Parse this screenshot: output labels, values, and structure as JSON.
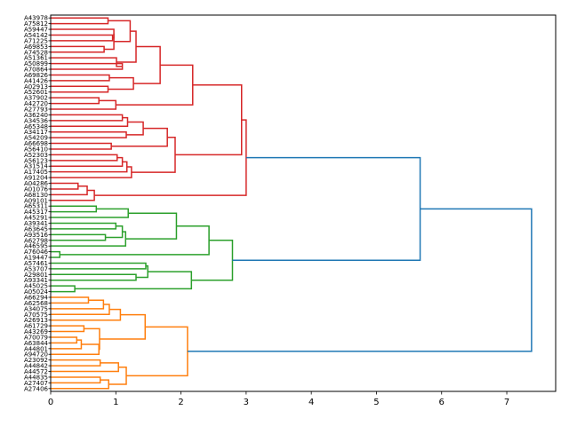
{
  "chart_data": {
    "type": "dendrogram",
    "orientation": "left",
    "title": "",
    "xlabel": "",
    "ylabel": "",
    "xlim": [
      0,
      7.75
    ],
    "xticks": [
      0,
      1,
      2,
      3,
      4,
      5,
      6,
      7
    ],
    "grid": false,
    "colors": {
      "red": "#d62728",
      "green": "#2ca02c",
      "orange": "#ff7f0e",
      "blue": "#1f77b4",
      "axis": "#000000"
    },
    "leaves": [
      "A43978",
      "A75812",
      "A59447",
      "A54142",
      "A71225",
      "A69853",
      "A74528",
      "A51361",
      "A50899",
      "A70864",
      "A69826",
      "A41426",
      "A02913",
      "A52601",
      "A37902",
      "A42720",
      "A27793",
      "A36240",
      "A34536",
      "A65348",
      "A34117",
      "A54209",
      "A66698",
      "A56410",
      "A52303",
      "A56123",
      "A31514",
      "A17405",
      "A91204",
      "A04286",
      "A01076",
      "A68130",
      "A09101",
      "A65311",
      "A45317",
      "A45291",
      "A39341",
      "A63645",
      "A93516",
      "A62798",
      "A46595",
      "A76046",
      "A19447",
      "A57461",
      "A53707",
      "A29801",
      "A93341",
      "A45025",
      "A05024",
      "A66294",
      "A62568",
      "A34075",
      "A70575",
      "A26913",
      "A61729",
      "A43269",
      "A70079",
      "A63844",
      "A44801",
      "A94720",
      "A23092",
      "A44842",
      "A44572",
      "A44835",
      "A27407",
      "A27406"
    ],
    "merges": [
      {
        "a": "A43978",
        "b": "A75812",
        "h": 0.88,
        "color": "red"
      },
      {
        "a": "A54142",
        "b": "A71225",
        "h": 0.95,
        "color": "red"
      },
      {
        "a": "A59447",
        "b": "m1",
        "h": 0.97,
        "color": "red"
      },
      {
        "a": "A69853",
        "b": "A74528",
        "h": 0.82,
        "color": "red"
      },
      {
        "a": "m2",
        "b": "m3",
        "h": 0.97,
        "color": "red"
      },
      {
        "a": "m0",
        "b": "m4",
        "h": 1.22,
        "color": "red"
      },
      {
        "a": "A50899",
        "b": "A70864",
        "h": 1.1,
        "color": "red"
      },
      {
        "a": "A51361",
        "b": "m6",
        "h": 1.01,
        "color": "red"
      },
      {
        "a": "m5",
        "b": "m7",
        "h": 1.31,
        "color": "red"
      },
      {
        "a": "A69826",
        "b": "A41426",
        "h": 0.9,
        "color": "red"
      },
      {
        "a": "A02913",
        "b": "A52601",
        "h": 0.88,
        "color": "red"
      },
      {
        "a": "m9",
        "b": "m10",
        "h": 1.27,
        "color": "red"
      },
      {
        "a": "m8",
        "b": "m11",
        "h": 1.68,
        "color": "red"
      },
      {
        "a": "A37902",
        "b": "A42720",
        "h": 0.74,
        "color": "red"
      },
      {
        "a": "m13",
        "b": "A27793",
        "h": 1.0,
        "color": "red"
      },
      {
        "a": "m12",
        "b": "m14",
        "h": 2.18,
        "color": "red"
      },
      {
        "a": "A36240",
        "b": "A34536",
        "h": 1.1,
        "color": "red"
      },
      {
        "a": "m16",
        "b": "A65348",
        "h": 1.18,
        "color": "red"
      },
      {
        "a": "A34117",
        "b": "A54209",
        "h": 1.16,
        "color": "red"
      },
      {
        "a": "m17",
        "b": "m18",
        "h": 1.42,
        "color": "red"
      },
      {
        "a": "A66698",
        "b": "A56410",
        "h": 0.93,
        "color": "red"
      },
      {
        "a": "m19",
        "b": "m20",
        "h": 1.79,
        "color": "red"
      },
      {
        "a": "A52303",
        "b": "A56123",
        "h": 1.02,
        "color": "red"
      },
      {
        "a": "m22",
        "b": "A31514",
        "h": 1.1,
        "color": "red"
      },
      {
        "a": "m23",
        "b": "A17405",
        "h": 1.17,
        "color": "red"
      },
      {
        "a": "m24",
        "b": "A91204",
        "h": 1.24,
        "color": "red"
      },
      {
        "a": "m21",
        "b": "m25",
        "h": 1.91,
        "color": "red"
      },
      {
        "a": "m15",
        "b": "m26",
        "h": 2.93,
        "color": "red"
      },
      {
        "a": "A04286",
        "b": "A01076",
        "h": 0.42,
        "color": "red"
      },
      {
        "a": "m28",
        "b": "A68130",
        "h": 0.56,
        "color": "red"
      },
      {
        "a": "m29",
        "b": "A09101",
        "h": 0.67,
        "color": "red"
      },
      {
        "a": "m27",
        "b": "m30",
        "h": 3.0,
        "color": "red"
      },
      {
        "a": "A65311",
        "b": "A45317",
        "h": 0.7,
        "color": "green"
      },
      {
        "a": "m32",
        "b": "A45291",
        "h": 1.19,
        "color": "green"
      },
      {
        "a": "A39341",
        "b": "A63645",
        "h": 1.0,
        "color": "green"
      },
      {
        "a": "A93516",
        "b": "A62798",
        "h": 0.84,
        "color": "green"
      },
      {
        "a": "m34",
        "b": "m35",
        "h": 1.1,
        "color": "green"
      },
      {
        "a": "m36",
        "b": "A46595",
        "h": 1.15,
        "color": "green"
      },
      {
        "a": "m33",
        "b": "m37",
        "h": 1.93,
        "color": "green"
      },
      {
        "a": "A76046",
        "b": "A19447",
        "h": 0.14,
        "color": "green"
      },
      {
        "a": "m38",
        "b": "m39",
        "h": 2.43,
        "color": "green"
      },
      {
        "a": "A57461",
        "b": "A53707",
        "h": 1.46,
        "color": "green"
      },
      {
        "a": "A29801",
        "b": "A93341",
        "h": 1.31,
        "color": "green"
      },
      {
        "a": "m41",
        "b": "m42",
        "h": 1.49,
        "color": "green"
      },
      {
        "a": "A45025",
        "b": "A05024",
        "h": 0.37,
        "color": "green"
      },
      {
        "a": "m43",
        "b": "m44",
        "h": 2.16,
        "color": "green"
      },
      {
        "a": "m40",
        "b": "m45",
        "h": 2.79,
        "color": "green"
      },
      {
        "a": "m31",
        "b": "m46",
        "h": 5.67,
        "color": "blue"
      },
      {
        "a": "A66294",
        "b": "A62568",
        "h": 0.58,
        "color": "orange"
      },
      {
        "a": "m48",
        "b": "A34075",
        "h": 0.81,
        "color": "orange"
      },
      {
        "a": "m49",
        "b": "A70575",
        "h": 0.9,
        "color": "orange"
      },
      {
        "a": "m50",
        "b": "A26913",
        "h": 1.07,
        "color": "orange"
      },
      {
        "a": "A61729",
        "b": "A43269",
        "h": 0.51,
        "color": "orange"
      },
      {
        "a": "A70079",
        "b": "A63844",
        "h": 0.4,
        "color": "orange"
      },
      {
        "a": "m53",
        "b": "A44801",
        "h": 0.47,
        "color": "orange"
      },
      {
        "a": "m54",
        "b": "A94720",
        "h": 0.74,
        "color": "orange"
      },
      {
        "a": "m52",
        "b": "m55",
        "h": 0.75,
        "color": "orange"
      },
      {
        "a": "m51",
        "b": "m56",
        "h": 1.45,
        "color": "orange"
      },
      {
        "a": "A23092",
        "b": "A44842",
        "h": 0.76,
        "color": "orange"
      },
      {
        "a": "m58",
        "b": "A44572",
        "h": 1.04,
        "color": "orange"
      },
      {
        "a": "A44835",
        "b": "A27407",
        "h": 0.76,
        "color": "orange"
      },
      {
        "a": "m60",
        "b": "A27406",
        "h": 0.89,
        "color": "orange"
      },
      {
        "a": "m59",
        "b": "m61",
        "h": 1.16,
        "color": "orange"
      },
      {
        "a": "m57",
        "b": "m62",
        "h": 2.1,
        "color": "orange"
      },
      {
        "a": "m47",
        "b": "m63",
        "h": 7.38,
        "color": "blue"
      }
    ]
  }
}
